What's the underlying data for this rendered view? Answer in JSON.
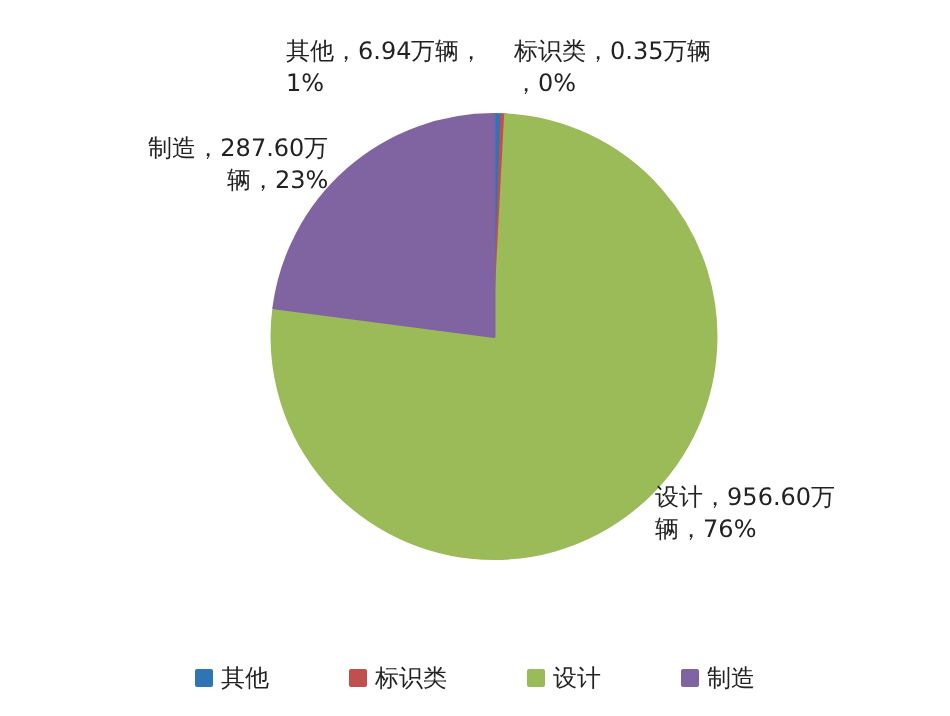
{
  "chart_data": {
    "type": "pie",
    "categories": [
      "其他",
      "标识类",
      "设计",
      "制造"
    ],
    "values": [
      6.94,
      0.35,
      956.6,
      287.6
    ],
    "colors": [
      "#2e75b6",
      "#c0504d",
      "#9bbb59",
      "#8064a2"
    ],
    "value_labels": [
      "其他，6.94万辆，1%",
      "标识类，0.35万辆，0%",
      "设计，956.60万辆，76%",
      "制造，287.60万辆，23%"
    ],
    "legend": "bottom"
  }
}
